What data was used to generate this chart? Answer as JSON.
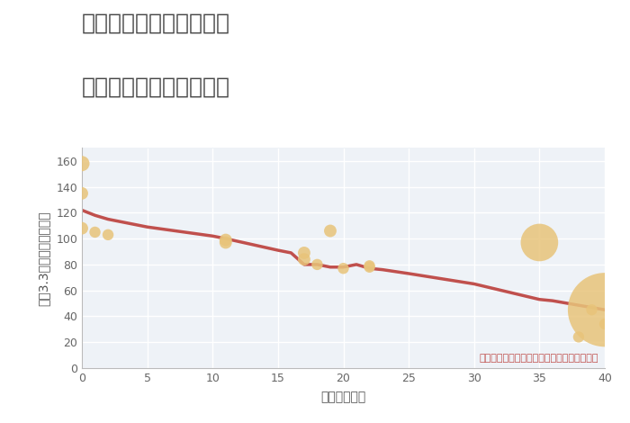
{
  "title_line1": "大阪府豊中市庄内東町の",
  "title_line2": "築年数別中古戸建て価格",
  "xlabel": "築年数（年）",
  "ylabel": "坪（3.3㎡）単価（万円）",
  "annotation": "円の大きさは、取引のあった物件面積を示す",
  "scatter_x": [
    0,
    0,
    0,
    1,
    2,
    11,
    11,
    17,
    17,
    18,
    19,
    20,
    22,
    22,
    35,
    38,
    39,
    40,
    40
  ],
  "scatter_y": [
    158,
    135,
    108,
    105,
    103,
    99,
    97,
    89,
    84,
    80,
    106,
    77,
    79,
    78,
    97,
    24,
    45,
    34,
    45
  ],
  "scatter_sizes": [
    150,
    100,
    100,
    80,
    80,
    100,
    100,
    100,
    100,
    80,
    100,
    80,
    80,
    80,
    900,
    80,
    80,
    80,
    3500
  ],
  "line_x": [
    0,
    1,
    2,
    3,
    5,
    10,
    11,
    15,
    16,
    17,
    18,
    19,
    20,
    21,
    22,
    23,
    25,
    30,
    35,
    36,
    40
  ],
  "line_y": [
    122,
    118,
    115,
    113,
    109,
    102,
    100,
    91,
    89,
    80,
    80,
    78,
    78,
    80,
    77,
    76,
    73,
    65,
    53,
    52,
    45
  ],
  "scatter_color": "#E8C47A",
  "line_color": "#C0504D",
  "fig_bg_color": "#FFFFFF",
  "plot_bg_color": "#EEF2F7",
  "grid_color": "#FFFFFF",
  "title_color": "#444444",
  "axis_label_color": "#555555",
  "tick_color": "#666666",
  "annotation_color": "#C0504D",
  "xlim": [
    0,
    40
  ],
  "ylim": [
    0,
    170
  ],
  "xticks": [
    0,
    5,
    10,
    15,
    20,
    25,
    30,
    35,
    40
  ],
  "yticks": [
    0,
    20,
    40,
    60,
    80,
    100,
    120,
    140,
    160
  ],
  "title_fontsize": 18,
  "label_fontsize": 10,
  "tick_fontsize": 9,
  "annotation_fontsize": 8
}
